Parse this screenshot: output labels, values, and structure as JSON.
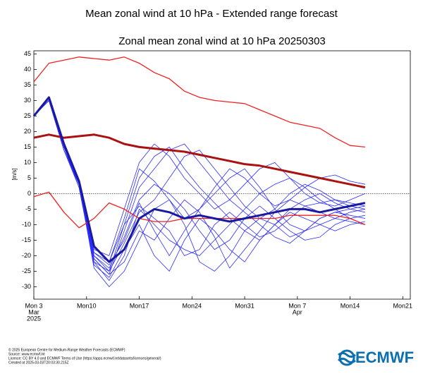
{
  "page_title": "Mean zonal wind at 10 hPa - Extended range forecast",
  "chart_data": {
    "type": "line",
    "title": "Zonal mean zonal wind at 10 hPa 20250303",
    "ylabel": "[m/s]",
    "x": [
      "2025-03-03",
      "2025-03-05",
      "2025-03-07",
      "2025-03-09",
      "2025-03-11",
      "2025-03-13",
      "2025-03-15",
      "2025-03-17",
      "2025-03-19",
      "2025-03-21",
      "2025-03-23",
      "2025-03-25",
      "2025-03-27",
      "2025-03-29",
      "2025-03-31",
      "2025-04-02",
      "2025-04-04",
      "2025-04-06",
      "2025-04-08",
      "2025-04-10",
      "2025-04-12",
      "2025-04-14",
      "2025-04-16"
    ],
    "xlim": [
      "2025-03-03",
      "2025-04-22"
    ],
    "xticks": [
      {
        "value": "2025-03-03",
        "label": "Mon 3",
        "month": "Mar",
        "year": "2025"
      },
      {
        "value": "2025-03-10",
        "label": "Mon10"
      },
      {
        "value": "2025-03-17",
        "label": "Mon17"
      },
      {
        "value": "2025-03-24",
        "label": "Mon24"
      },
      {
        "value": "2025-03-31",
        "label": "Mon31"
      },
      {
        "value": "2025-04-07",
        "label": "Mon 7",
        "month": "Apr"
      },
      {
        "value": "2025-04-14",
        "label": "Mon14"
      },
      {
        "value": "2025-04-21",
        "label": "Mon21"
      }
    ],
    "ylim": [
      -34,
      46
    ],
    "yticks": [
      -30,
      -25,
      -20,
      -15,
      -10,
      -5,
      0,
      5,
      10,
      15,
      20,
      25,
      30,
      35,
      40,
      45
    ],
    "series": [
      {
        "color": "#2a2aff",
        "linewidth": 0.8,
        "values": [
          25,
          30,
          15,
          3,
          -20,
          -25,
          -10,
          5,
          12,
          15,
          8,
          2,
          -3,
          -8,
          -12,
          -15,
          -10,
          -5,
          -2,
          0,
          -3,
          -5,
          -6
        ]
      },
      {
        "color": "#2a2aff",
        "linewidth": 0.8,
        "values": [
          25,
          30,
          14,
          2,
          -22,
          -28,
          -20,
          -5,
          -10,
          -15,
          -18,
          -20,
          -15,
          -10,
          -5,
          0,
          3,
          5,
          2,
          -2,
          -5,
          -8,
          -10
        ]
      },
      {
        "color": "#2a2aff",
        "linewidth": 0.8,
        "values": [
          25,
          30,
          16,
          4,
          -18,
          -20,
          -5,
          10,
          16,
          12,
          5,
          0,
          -5,
          -2,
          3,
          8,
          10,
          5,
          0,
          -3,
          -4,
          -2,
          0
        ]
      },
      {
        "color": "#2a2aff",
        "linewidth": 0.8,
        "values": [
          25,
          30,
          15,
          3,
          -24,
          -30,
          -25,
          -15,
          -5,
          -2,
          -10,
          -22,
          -25,
          -20,
          -12,
          -8,
          -10,
          -14,
          -12,
          -8,
          -6,
          -5,
          -4
        ]
      },
      {
        "color": "#2a2aff",
        "linewidth": 0.8,
        "values": [
          25,
          31,
          15,
          3,
          -19,
          -23,
          -15,
          -3,
          -12,
          -20,
          -12,
          -5,
          0,
          5,
          8,
          2,
          -5,
          -10,
          -12,
          -10,
          -8,
          -6,
          -5
        ]
      },
      {
        "color": "#2a2aff",
        "linewidth": 0.8,
        "values": [
          25,
          30,
          14,
          3,
          -21,
          -26,
          -12,
          2,
          8,
          14,
          16,
          10,
          4,
          -2,
          -6,
          -10,
          -14,
          -16,
          -12,
          -8,
          -6,
          -7,
          -8
        ]
      },
      {
        "color": "#2a2aff",
        "linewidth": 0.8,
        "values": [
          25,
          30,
          15,
          2,
          -23,
          -27,
          -18,
          -10,
          -20,
          -25,
          -15,
          -8,
          -12,
          -18,
          -22,
          -15,
          -10,
          -6,
          -8,
          -10,
          -12,
          -10,
          -9
        ]
      },
      {
        "color": "#2a2aff",
        "linewidth": 0.8,
        "values": [
          25,
          30,
          16,
          4,
          -17,
          -22,
          -8,
          8,
          4,
          -2,
          -8,
          -5,
          2,
          8,
          5,
          0,
          -4,
          -2,
          2,
          5,
          6,
          4,
          3
        ]
      },
      {
        "color": "#2a2aff",
        "linewidth": 0.8,
        "values": [
          25,
          30,
          15,
          3,
          -20,
          -24,
          -14,
          -2,
          3,
          0,
          -5,
          -12,
          -18,
          -15,
          -8,
          -4,
          -8,
          -12,
          -15,
          -14,
          -10,
          -8,
          -7
        ]
      },
      {
        "color": "#2a2aff",
        "linewidth": 0.8,
        "values": [
          25,
          30,
          15,
          3,
          -22,
          -25,
          -16,
          -6,
          -2,
          5,
          12,
          14,
          8,
          2,
          -4,
          -8,
          -5,
          0,
          3,
          1,
          -2,
          -4,
          -5
        ]
      },
      {
        "color": "#2a2aff",
        "linewidth": 0.8,
        "values": [
          25,
          30,
          14,
          3,
          -21,
          -26,
          -22,
          -12,
          -15,
          -8,
          -2,
          -6,
          -14,
          -24,
          -18,
          -12,
          -6,
          -2,
          -4,
          -6,
          -8,
          -9,
          -10
        ]
      },
      {
        "color": "#2a2aff",
        "linewidth": 0.8,
        "values": [
          25,
          30,
          15,
          3,
          -19,
          -22,
          -10,
          -4,
          -8,
          -12,
          -20,
          -18,
          -10,
          -6,
          -10,
          -14,
          -12,
          -8,
          -4,
          -3,
          -2,
          -3,
          -4
        ]
      },
      {
        "color": "#ee2222",
        "linewidth": 1.3,
        "values": [
          36,
          42,
          43,
          44,
          43.5,
          43,
          44,
          42,
          39,
          37,
          33,
          31,
          30,
          29.5,
          29,
          27,
          25,
          23,
          22,
          21,
          18,
          15.5,
          15
        ]
      },
      {
        "color": "#ee2222",
        "linewidth": 1.3,
        "values": [
          -1,
          0.5,
          -6,
          -11,
          -8,
          -3,
          -5,
          -8,
          -9,
          -9,
          -8,
          -8,
          -8,
          -8,
          -8,
          -8,
          -8,
          -7,
          -7,
          -7,
          -7,
          -8,
          -10
        ]
      },
      {
        "color": "#aa1111",
        "linewidth": 3,
        "values": [
          18,
          19,
          18,
          18.5,
          19,
          18,
          16,
          15,
          14.5,
          14,
          13.5,
          12.5,
          11.5,
          10.5,
          9.5,
          9,
          8,
          7,
          6,
          5,
          4,
          3,
          2
        ]
      },
      {
        "color": "#1a1aa0",
        "linewidth": 3,
        "values": [
          25,
          31,
          16,
          4,
          -17,
          -22,
          -18,
          -8,
          -5,
          -6,
          -8,
          -7,
          -8,
          -9,
          -8,
          -7,
          -6,
          -5,
          -5,
          -6,
          -5,
          -4,
          -3
        ]
      }
    ]
  },
  "credits": [
    "© 2025 European Centre for Medium-Range Weather Forecasts (ECMWF)",
    "Source: www.ecmwf.int",
    "Licence: CC BY 4.0 and ECMWF Terms of Use (https://apps.ecmwf.int/datasets/licences/general/)",
    "Created at 2025-03-03T20:03:30.215Z"
  ],
  "logo_text": "ECMWF"
}
